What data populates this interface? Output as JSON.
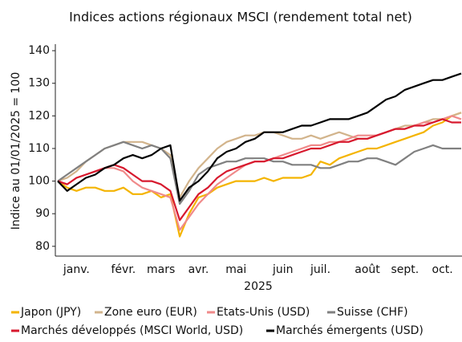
{
  "chart_data": {
    "type": "line",
    "title": "Indices actions régionaux MSCI (rendement total net)",
    "ylabel": "Indice au 01/01/2025 = 100",
    "xlabel": "2025",
    "categories": [
      null,
      null,
      "janv.",
      null,
      null,
      null,
      null,
      "févr.",
      null,
      null,
      null,
      "mars",
      null,
      null,
      null,
      "avr.",
      null,
      null,
      null,
      "mai",
      null,
      null,
      null,
      null,
      "juin",
      null,
      null,
      null,
      "juil.",
      null,
      null,
      null,
      null,
      "août",
      null,
      null,
      null,
      "sept.",
      null,
      null,
      null,
      "oct.",
      null,
      null
    ],
    "ylim": [
      77,
      142
    ],
    "yticks": [
      80,
      90,
      100,
      110,
      120,
      130,
      140
    ],
    "grid": false,
    "legend": "bottom",
    "series": [
      {
        "name": "Japon (JPY)",
        "color": "#f4b400",
        "values": [
          100,
          98,
          97,
          98,
          98,
          97,
          97,
          98,
          96,
          96,
          97,
          95,
          96,
          83,
          90,
          95,
          96,
          98,
          99,
          100,
          100,
          100,
          101,
          100,
          101,
          101,
          101,
          102,
          106,
          105,
          107,
          108,
          109,
          110,
          110,
          111,
          112,
          113,
          114,
          115,
          117,
          118,
          120,
          121
        ]
      },
      {
        "name": "Zone euro (EUR)",
        "color": "#d2b48c",
        "values": [
          100,
          101,
          103,
          106,
          108,
          110,
          111,
          112,
          112,
          112,
          111,
          110,
          108,
          95,
          100,
          104,
          107,
          110,
          112,
          113,
          114,
          114,
          115,
          115,
          114,
          113,
          113,
          114,
          113,
          114,
          115,
          114,
          113,
          113,
          114,
          115,
          116,
          117,
          117,
          118,
          119,
          119,
          120,
          121
        ]
      },
      {
        "name": "Etats-Unis (USD)",
        "color": "#f08a8a",
        "values": [
          100,
          99,
          101,
          102,
          103,
          104,
          104,
          103,
          100,
          98,
          97,
          96,
          95,
          85,
          89,
          93,
          96,
          99,
          101,
          103,
          105,
          106,
          106,
          107,
          108,
          109,
          110,
          111,
          111,
          112,
          112,
          113,
          114,
          114,
          114,
          115,
          116,
          116,
          117,
          118,
          118,
          119,
          120,
          119
        ]
      },
      {
        "name": "Suisse (CHF)",
        "color": "#808080",
        "values": [
          100,
          102,
          104,
          106,
          108,
          110,
          111,
          112,
          111,
          110,
          111,
          110,
          107,
          93,
          97,
          102,
          104,
          105,
          106,
          106,
          107,
          107,
          107,
          106,
          106,
          105,
          105,
          105,
          104,
          104,
          105,
          106,
          106,
          107,
          107,
          106,
          105,
          107,
          109,
          110,
          111,
          110,
          110,
          110
        ]
      },
      {
        "name": "Marchés développés (MSCI World, USD)",
        "color": "#d7192e",
        "values": [
          100,
          99,
          101,
          102,
          103,
          104,
          105,
          104,
          102,
          100,
          100,
          99,
          97,
          88,
          92,
          96,
          98,
          101,
          103,
          104,
          105,
          106,
          106,
          107,
          107,
          108,
          109,
          110,
          110,
          111,
          112,
          112,
          113,
          113,
          114,
          115,
          116,
          116,
          117,
          117,
          118,
          119,
          118,
          118
        ]
      },
      {
        "name": "Marchés émergents (USD)",
        "color": "#000000",
        "values": [
          100,
          97,
          99,
          101,
          102,
          104,
          105,
          107,
          108,
          107,
          108,
          110,
          111,
          94,
          98,
          100,
          103,
          107,
          109,
          110,
          112,
          113,
          115,
          115,
          115,
          116,
          117,
          117,
          118,
          119,
          119,
          119,
          120,
          121,
          123,
          125,
          126,
          128,
          129,
          130,
          131,
          131,
          132,
          133
        ]
      }
    ]
  }
}
